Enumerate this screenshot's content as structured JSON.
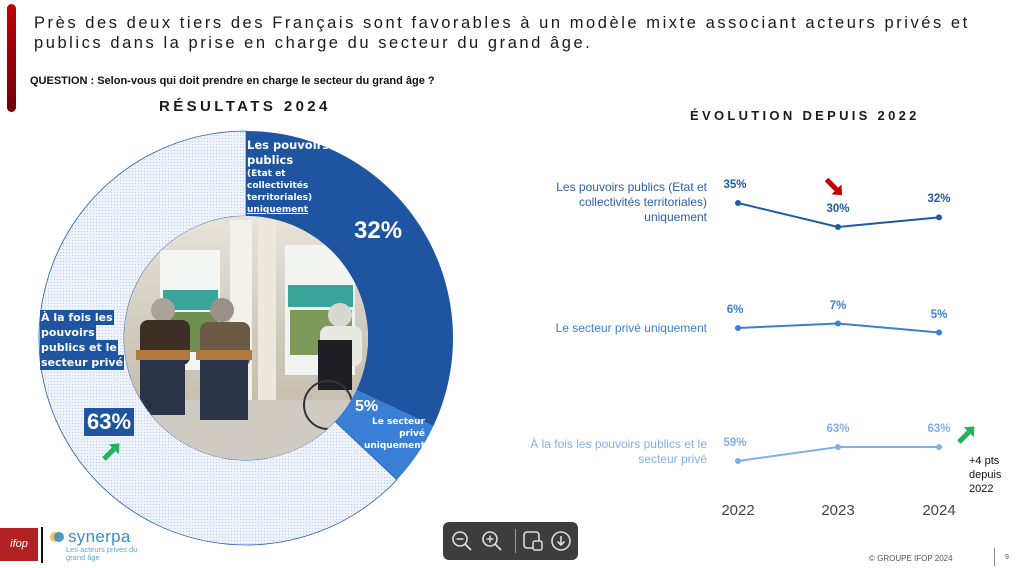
{
  "headline": "Près des deux tiers des Français sont favorables à un modèle mixte associant acteurs privés et publics dans la prise en charge du secteur du grand âge.",
  "question": "QUESTION : Selon-vous qui doit prendre en charge le secteur du grand âge ?",
  "colors": {
    "accent": "#a00010",
    "public": "#1f55a0",
    "private": "#3a7fd5",
    "mixed": "#dfe9f7",
    "line_public": "#1f5aa5",
    "line_private": "#3a7fd5",
    "line_mixed": "#7fb0ea",
    "arrow_down": "#c00000",
    "arrow_up": "#1db45a"
  },
  "chart_data": [
    {
      "type": "pie",
      "title": "RÉSULTATS 2024",
      "slices": [
        {
          "name": "Les pouvoirs publics",
          "detail": "(Etat et collectivités territoriales)",
          "suffix": "uniquement",
          "value": 32,
          "value_label": "32%"
        },
        {
          "name": "Le secteur privé",
          "suffix": "uniquement",
          "value": 5,
          "value_label": "5%"
        },
        {
          "name": "À la fois les pouvoirs publics et le secteur privé",
          "value": 63,
          "value_label": "63%",
          "trend": "up"
        }
      ]
    },
    {
      "type": "line",
      "title": "ÉVOLUTION DEPUIS 2022",
      "x": [
        "2022",
        "2023",
        "2024"
      ],
      "ylim": [
        0,
        70
      ],
      "series": [
        {
          "name": "Les pouvoirs publics (Etat et collectivités territoriales) uniquement",
          "values": [
            35,
            30,
            32
          ],
          "labels": [
            "35%",
            "30%",
            "32%"
          ],
          "trend_marker": "down at 2023"
        },
        {
          "name": "Le secteur privé uniquement",
          "values": [
            6,
            7,
            5
          ],
          "labels": [
            "6%",
            "7%",
            "5%"
          ]
        },
        {
          "name": "À la fois les pouvoirs publics et le secteur privé",
          "values": [
            59,
            63,
            63
          ],
          "labels": [
            "59%",
            "63%",
            "63%"
          ],
          "annotation": "+4 pts depuis 2022"
        }
      ]
    }
  ],
  "pie_labels": {
    "public_line1": "Les pouvoirs",
    "public_line2": "publics",
    "public_detail": "(Etat et collectivités territoriales)",
    "public_suffix": "uniquement",
    "mixed_line1": "À la fois les",
    "mixed_line2": "pouvoirs",
    "mixed_line3": "publics et le",
    "mixed_line4": "secteur privé",
    "private_line1": "Le secteur privé",
    "private_line2": "uniquement"
  },
  "series_labels": {
    "public": [
      "Les pouvoirs publics (Etat et",
      "collectivités territoriales)",
      "uniquement"
    ],
    "private": [
      "Le secteur privé uniquement"
    ],
    "mixed": [
      "À la fois les pouvoirs publics et le",
      "secteur privé"
    ]
  },
  "annotation": [
    "+4 pts",
    "depuis",
    "2022"
  ],
  "toolbar": {
    "icons": [
      "zoom-out-icon",
      "zoom-in-icon",
      "presentation-icon",
      "download-icon"
    ]
  },
  "footer": {
    "ifop_logo": "ifop",
    "synerpa_name": "synerpa",
    "synerpa_tagline": "Les acteurs privés du grand âge",
    "copyright": "© GROUPE IFOP 2024",
    "page_number": "9"
  }
}
